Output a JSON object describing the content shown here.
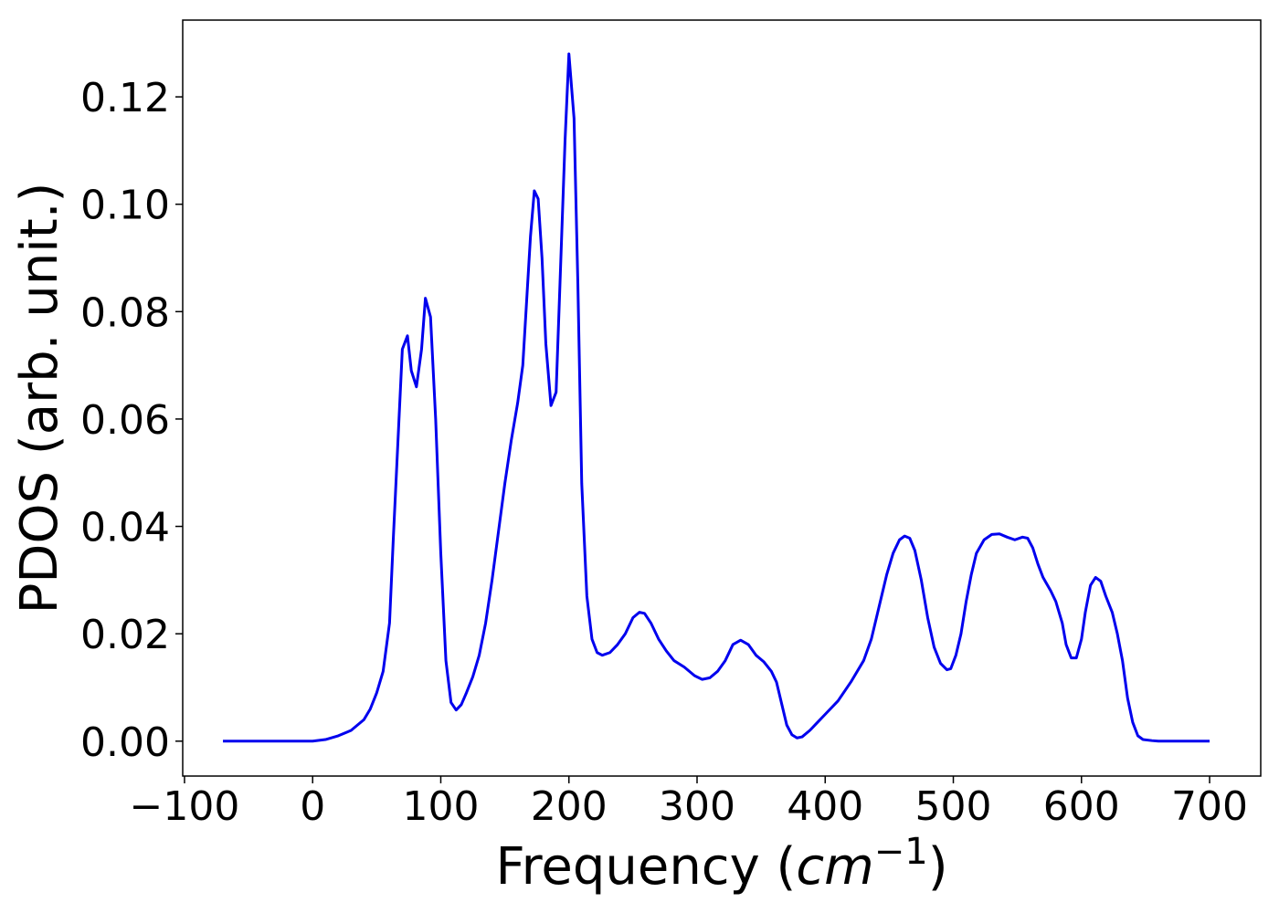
{
  "chart_data": {
    "type": "line",
    "ylabel": "PDOS (arb. unit.)",
    "xlabel": {
      "text": "Frequency (",
      "unit": "cm",
      "exponent": "−1",
      "close": ")"
    },
    "x": [
      -70,
      -60,
      -50,
      -40,
      -30,
      -20,
      -10,
      0,
      10,
      20,
      30,
      40,
      45,
      50,
      55,
      60,
      63,
      67,
      70,
      74,
      77,
      81,
      85,
      88,
      92,
      96,
      100,
      104,
      108,
      112,
      116,
      120,
      125,
      130,
      135,
      140,
      145,
      150,
      155,
      160,
      164,
      167,
      170,
      173,
      176,
      179,
      182,
      186,
      190,
      193,
      197,
      200,
      204,
      207,
      210,
      214,
      218,
      222,
      226,
      232,
      238,
      244,
      250,
      255,
      259,
      264,
      270,
      276,
      282,
      290,
      298,
      304,
      310,
      316,
      322,
      328,
      334,
      340,
      346,
      352,
      358,
      362,
      366,
      370,
      374,
      378,
      382,
      388,
      394,
      400,
      410,
      420,
      430,
      436,
      442,
      448,
      453,
      458,
      462,
      466,
      470,
      475,
      480,
      485,
      490,
      495,
      498,
      502,
      506,
      510,
      514,
      518,
      524,
      530,
      536,
      542,
      548,
      554,
      558,
      562,
      566,
      570,
      576,
      580,
      585,
      588,
      592,
      596,
      600,
      603,
      607,
      611,
      615,
      619,
      624,
      628,
      632,
      636,
      640,
      644,
      648,
      655,
      660,
      670,
      680,
      690,
      700
    ],
    "series": [
      {
        "name": "PDOS",
        "color": "#0000ee",
        "values": [
          0,
          0,
          0,
          0,
          0,
          0,
          0,
          0,
          0.0003,
          0.001,
          0.002,
          0.004,
          0.006,
          0.009,
          0.013,
          0.022,
          0.038,
          0.058,
          0.073,
          0.0755,
          0.069,
          0.066,
          0.073,
          0.0825,
          0.079,
          0.06,
          0.035,
          0.015,
          0.0072,
          0.0058,
          0.0068,
          0.009,
          0.012,
          0.016,
          0.022,
          0.03,
          0.039,
          0.048,
          0.056,
          0.063,
          0.07,
          0.082,
          0.094,
          0.1025,
          0.101,
          0.09,
          0.074,
          0.0625,
          0.065,
          0.085,
          0.112,
          0.128,
          0.116,
          0.085,
          0.048,
          0.027,
          0.019,
          0.0165,
          0.016,
          0.0165,
          0.018,
          0.02,
          0.023,
          0.024,
          0.0238,
          0.022,
          0.019,
          0.0168,
          0.015,
          0.0138,
          0.0122,
          0.0115,
          0.0118,
          0.013,
          0.015,
          0.018,
          0.0188,
          0.018,
          0.016,
          0.0148,
          0.013,
          0.011,
          0.007,
          0.003,
          0.0012,
          0.0006,
          0.0008,
          0.002,
          0.0035,
          0.005,
          0.0075,
          0.011,
          0.015,
          0.019,
          0.025,
          0.031,
          0.035,
          0.0375,
          0.0382,
          0.0378,
          0.0355,
          0.03,
          0.023,
          0.0175,
          0.0145,
          0.0133,
          0.0135,
          0.016,
          0.02,
          0.026,
          0.031,
          0.035,
          0.0375,
          0.0385,
          0.0386,
          0.038,
          0.0375,
          0.038,
          0.0378,
          0.036,
          0.033,
          0.0305,
          0.028,
          0.026,
          0.022,
          0.018,
          0.0155,
          0.0155,
          0.019,
          0.024,
          0.029,
          0.0305,
          0.0298,
          0.027,
          0.024,
          0.02,
          0.015,
          0.008,
          0.0035,
          0.001,
          0.0003,
          0.0001,
          0,
          0,
          0,
          0,
          0
        ]
      }
    ],
    "xlim": [
      -101.4,
      739.9
    ],
    "xticks": [
      {
        "value": -100,
        "label": "−100"
      },
      0,
      100,
      200,
      300,
      400,
      500,
      600,
      700
    ],
    "ylim": [
      -0.0065,
      0.1343
    ],
    "yticks": [
      {
        "value": 0,
        "label": "0.00"
      },
      {
        "value": 0.02,
        "label": "0.02"
      },
      {
        "value": 0.04,
        "label": "0.04"
      },
      {
        "value": 0.06,
        "label": "0.06"
      },
      {
        "value": 0.08,
        "label": "0.08"
      },
      {
        "value": 0.1,
        "label": "0.10"
      },
      {
        "value": 0.12,
        "label": "0.12"
      }
    ],
    "grid": false
  }
}
